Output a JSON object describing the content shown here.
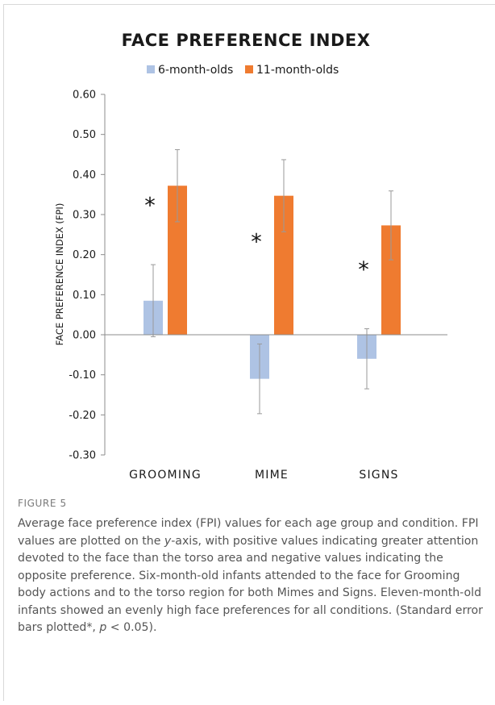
{
  "chart_data": {
    "type": "bar",
    "title": "FACE PREFERENCE INDEX",
    "ylabel": "FACE PREFERENCE INDEX (FPI)",
    "xlabel": "",
    "categories": [
      "GROOMING",
      "MIME",
      "SIGNS"
    ],
    "series": [
      {
        "name": "6-month-olds",
        "color": "#aec3e4",
        "values": [
          0.085,
          -0.11,
          -0.06
        ],
        "error": [
          0.09,
          0.087,
          0.075
        ]
      },
      {
        "name": "11-month-olds",
        "color": "#ef7b30",
        "values": [
          0.372,
          0.347,
          0.273
        ],
        "error": [
          0.09,
          0.09,
          0.086
        ]
      }
    ],
    "ylim": [
      -0.3,
      0.6
    ],
    "yticks": [
      "-0.30",
      "-0.20",
      "-0.10",
      "0.00",
      "0.10",
      "0.20",
      "0.30",
      "0.40",
      "0.50",
      "0.60"
    ],
    "annotations": [
      {
        "category": "GROOMING",
        "text": "*",
        "y": 0.335
      },
      {
        "category": "MIME",
        "text": "*",
        "y": 0.245
      },
      {
        "category": "SIGNS",
        "text": "*",
        "y": 0.175
      }
    ],
    "legend_position": "top-center",
    "grid": false
  },
  "figure": {
    "label": "FIGURE 5",
    "caption_parts": [
      {
        "text": "Average face preference index (FPI) values for each age group and condition. FPI values are plotted on the "
      },
      {
        "text": "y",
        "italic": true
      },
      {
        "text": "-axis, with positive values indicating greater attention devoted to the face than the torso area and negative values indicating the opposite preference. Six-month-old infants attended to the face for Grooming body actions and to the torso region for both Mimes and Signs. Eleven-month-old infants showed an evenly high face preferences for all conditions. (Standard error bars plotted*, "
      },
      {
        "text": "p",
        "italic": true
      },
      {
        "text": " < 0.05)."
      }
    ]
  }
}
